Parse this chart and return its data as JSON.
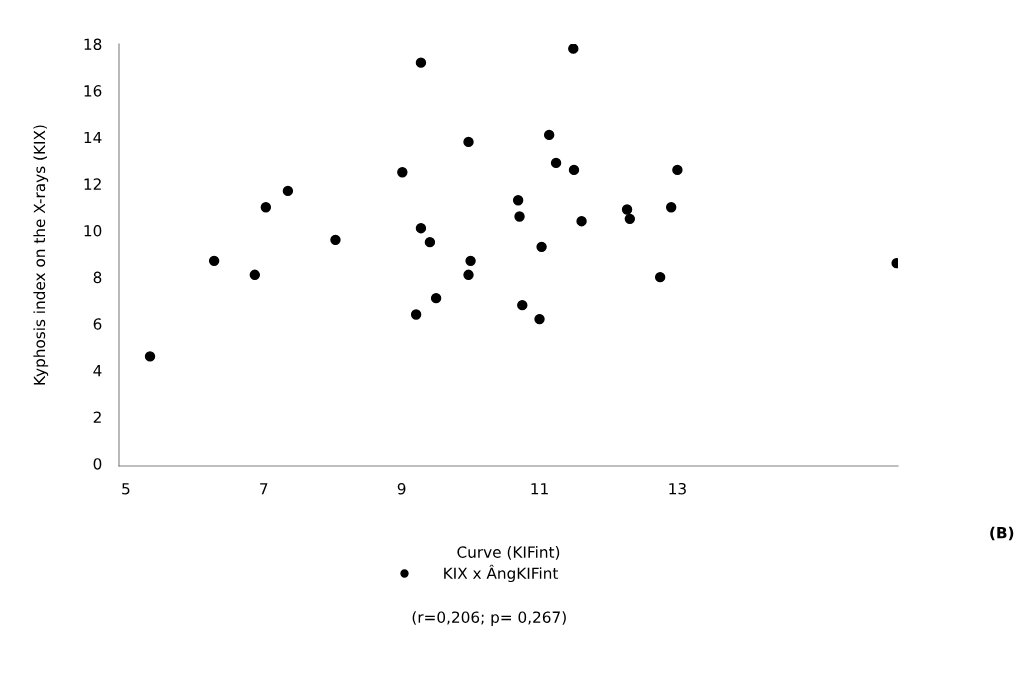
{
  "chart_data": {
    "type": "scatter",
    "xlabel": "Curve (KIFint)",
    "ylabel": "Kyphosis index on the X-rays (KIX)",
    "x": [
      5.35,
      6.28,
      6.87,
      7.03,
      7.35,
      8.04,
      9.01,
      9.21,
      9.28,
      9.28,
      9.41,
      9.5,
      9.97,
      9.97,
      10.0,
      10.69,
      10.71,
      10.75,
      11.0,
      11.03,
      11.14,
      11.24,
      11.49,
      11.5,
      11.61,
      12.27,
      12.31,
      12.75,
      12.91,
      13.0,
      16.18
    ],
    "series": [
      {
        "name": "KIX x ÂngKIFint",
        "color": "#000000",
        "values": [
          4.6,
          8.7,
          8.1,
          11.0,
          11.7,
          9.6,
          12.5,
          6.4,
          17.2,
          10.1,
          9.5,
          7.1,
          13.8,
          8.1,
          8.7,
          11.3,
          10.6,
          6.8,
          6.2,
          9.3,
          14.1,
          12.9,
          17.8,
          12.6,
          10.4,
          10.9,
          10.5,
          8.0,
          11.0,
          12.6,
          8.6
        ]
      }
    ],
    "xlim": [
      4.9,
      16.2
    ],
    "xticks": [
      5,
      7,
      9,
      11,
      13
    ],
    "ylim": [
      -0.1,
      18
    ],
    "yticks": [
      0,
      2,
      4,
      6,
      8,
      10,
      12,
      14,
      16,
      18
    ],
    "marker": "circle",
    "grid": false,
    "legend": "bottom",
    "annotations": [
      "(r=0,206; p= 0,267)",
      "(B)"
    ]
  }
}
